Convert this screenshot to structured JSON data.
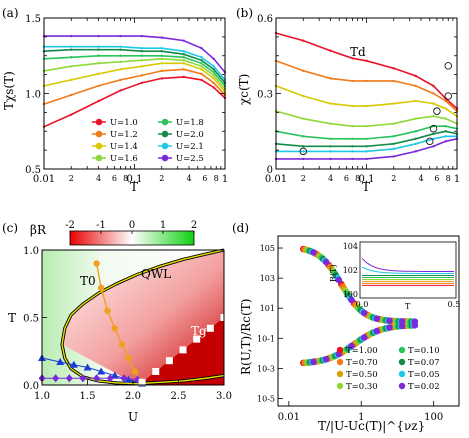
{
  "chart_data": [
    {
      "panel": "(a)",
      "type": "line",
      "xlabel": "T",
      "ylabel": "Tχs(T)",
      "xscale": "log",
      "xlim": [
        0.01,
        1
      ],
      "ylim": [
        0.5,
        1.5
      ],
      "xticks": [
        "0.01",
        "0.1",
        "1"
      ],
      "xminor": [
        "2",
        "4",
        "6",
        "8",
        "2",
        "4",
        "6",
        "8"
      ],
      "yticks": [
        "0.5",
        "1.0",
        "1.5"
      ],
      "legend_position": "lower-center",
      "series": [
        {
          "name": "U=1.0",
          "color": "#e8132a",
          "x": [
            0.01,
            0.02,
            0.04,
            0.07,
            0.12,
            0.2,
            0.35,
            0.55,
            0.75,
            1
          ],
          "y": [
            0.78,
            0.86,
            0.95,
            1.02,
            1.07,
            1.1,
            1.11,
            1.09,
            1.04,
            0.97
          ]
        },
        {
          "name": "U=1.2",
          "color": "#f07a1a",
          "x": [
            0.01,
            0.02,
            0.04,
            0.07,
            0.12,
            0.2,
            0.35,
            0.55,
            0.75,
            1
          ],
          "y": [
            0.93,
            0.99,
            1.05,
            1.09,
            1.12,
            1.15,
            1.16,
            1.13,
            1.07,
            0.99
          ]
        },
        {
          "name": "U=1.4",
          "color": "#d8c800",
          "x": [
            0.01,
            0.02,
            0.04,
            0.07,
            0.12,
            0.2,
            0.35,
            0.55,
            0.75,
            1
          ],
          "y": [
            1.05,
            1.09,
            1.13,
            1.16,
            1.18,
            1.2,
            1.2,
            1.16,
            1.1,
            1.01
          ]
        },
        {
          "name": "U=1.6",
          "color": "#8fd83a",
          "x": [
            0.01,
            0.02,
            0.04,
            0.07,
            0.12,
            0.2,
            0.35,
            0.55,
            0.75,
            1
          ],
          "y": [
            1.15,
            1.18,
            1.2,
            1.21,
            1.22,
            1.23,
            1.22,
            1.18,
            1.12,
            1.03
          ]
        },
        {
          "name": "U=1.8",
          "color": "#2ac35a",
          "x": [
            0.01,
            0.02,
            0.04,
            0.07,
            0.12,
            0.2,
            0.35,
            0.55,
            0.75,
            1
          ],
          "y": [
            1.23,
            1.24,
            1.25,
            1.25,
            1.25,
            1.25,
            1.24,
            1.2,
            1.14,
            1.05
          ]
        },
        {
          "name": "U=2.0",
          "color": "#138a4a",
          "x": [
            0.01,
            0.02,
            0.04,
            0.07,
            0.12,
            0.2,
            0.35,
            0.55,
            0.75,
            1
          ],
          "y": [
            1.28,
            1.29,
            1.29,
            1.29,
            1.28,
            1.28,
            1.26,
            1.22,
            1.16,
            1.07
          ]
        },
        {
          "name": "U=2.1",
          "color": "#20c8e6",
          "x": [
            0.01,
            0.02,
            0.04,
            0.07,
            0.12,
            0.2,
            0.35,
            0.55,
            0.75,
            1
          ],
          "y": [
            1.31,
            1.31,
            1.31,
            1.31,
            1.3,
            1.3,
            1.28,
            1.24,
            1.18,
            1.09
          ]
        },
        {
          "name": "U=2.5",
          "color": "#7a2ad8",
          "x": [
            0.01,
            0.02,
            0.04,
            0.07,
            0.12,
            0.2,
            0.35,
            0.55,
            0.75,
            1
          ],
          "y": [
            1.38,
            1.38,
            1.38,
            1.38,
            1.38,
            1.37,
            1.35,
            1.3,
            1.23,
            1.14
          ]
        }
      ]
    },
    {
      "panel": "(b)",
      "type": "line",
      "xlabel": "T",
      "ylabel": "χc(T)",
      "xscale": "log",
      "xlim": [
        0.01,
        1
      ],
      "ylim": [
        0,
        0.6
      ],
      "xticks": [
        "0.01",
        "0.1",
        "1"
      ],
      "xminor": [
        "2",
        "4",
        "6",
        "8",
        "2",
        "4",
        "6",
        "8"
      ],
      "yticks": [
        "0",
        "0.3",
        "0.6"
      ],
      "annotation": "Td",
      "series": [
        {
          "name": "U=1.0",
          "color": "#e8132a",
          "x": [
            0.01,
            0.02,
            0.04,
            0.07,
            0.1,
            0.2,
            0.35,
            0.55,
            0.75,
            1
          ],
          "y": [
            0.54,
            0.51,
            0.47,
            0.44,
            0.43,
            0.4,
            0.37,
            0.33,
            0.28,
            0.24
          ]
        },
        {
          "name": "U=1.2",
          "color": "#f07a1a",
          "x": [
            0.01,
            0.02,
            0.04,
            0.07,
            0.1,
            0.2,
            0.35,
            0.55,
            0.75,
            1
          ],
          "y": [
            0.43,
            0.39,
            0.36,
            0.35,
            0.35,
            0.35,
            0.33,
            0.3,
            0.27,
            0.23
          ]
        },
        {
          "name": "U=1.4",
          "color": "#d8c800",
          "x": [
            0.01,
            0.02,
            0.04,
            0.07,
            0.1,
            0.2,
            0.35,
            0.55,
            0.75,
            1
          ],
          "y": [
            0.33,
            0.29,
            0.26,
            0.25,
            0.25,
            0.26,
            0.27,
            0.26,
            0.24,
            0.21
          ]
        },
        {
          "name": "U=1.6",
          "color": "#8fd83a",
          "x": [
            0.01,
            0.02,
            0.04,
            0.07,
            0.1,
            0.2,
            0.35,
            0.55,
            0.75,
            1
          ],
          "y": [
            0.23,
            0.2,
            0.18,
            0.17,
            0.17,
            0.18,
            0.2,
            0.21,
            0.2,
            0.18
          ]
        },
        {
          "name": "U=1.8",
          "color": "#2ac35a",
          "x": [
            0.01,
            0.02,
            0.04,
            0.07,
            0.1,
            0.2,
            0.35,
            0.55,
            0.75,
            1
          ],
          "y": [
            0.15,
            0.13,
            0.12,
            0.12,
            0.12,
            0.13,
            0.15,
            0.17,
            0.17,
            0.16
          ]
        },
        {
          "name": "U=2.0",
          "color": "#138a4a",
          "x": [
            0.01,
            0.02,
            0.04,
            0.07,
            0.1,
            0.2,
            0.35,
            0.55,
            0.75,
            1
          ],
          "y": [
            0.1,
            0.09,
            0.09,
            0.09,
            0.09,
            0.1,
            0.12,
            0.14,
            0.15,
            0.14
          ]
        },
        {
          "name": "U=2.1",
          "color": "#20c8e6",
          "x": [
            0.01,
            0.02,
            0.04,
            0.07,
            0.1,
            0.2,
            0.35,
            0.55,
            0.75,
            1
          ],
          "y": [
            0.07,
            0.07,
            0.07,
            0.07,
            0.07,
            0.08,
            0.1,
            0.12,
            0.13,
            0.13
          ]
        },
        {
          "name": "U=2.5",
          "color": "#7a2ad8",
          "x": [
            0.01,
            0.02,
            0.04,
            0.07,
            0.1,
            0.2,
            0.35,
            0.55,
            0.75,
            1
          ],
          "y": [
            0.04,
            0.04,
            0.04,
            0.04,
            0.04,
            0.05,
            0.07,
            0.09,
            0.11,
            0.12
          ]
        }
      ],
      "td_markers": [
        {
          "x": 0.8,
          "y": 0.41
        },
        {
          "x": 0.8,
          "y": 0.29
        },
        {
          "x": 0.6,
          "y": 0.23
        },
        {
          "x": 0.55,
          "y": 0.16
        },
        {
          "x": 0.5,
          "y": 0.11
        },
        {
          "x": 0.02,
          "y": 0.07
        }
      ]
    },
    {
      "panel": "(c)",
      "type": "heatmap",
      "xlabel": "U",
      "ylabel": "T",
      "xlim": [
        1.0,
        3.0
      ],
      "ylim": [
        0,
        1.0
      ],
      "xticks": [
        "1.0",
        "1.5",
        "2.0",
        "2.5",
        "3.0"
      ],
      "yticks": [
        "0.0",
        "0.5",
        "1.0"
      ],
      "colorbar_label": "βR",
      "colorbar_ticks": [
        "-2",
        "-1",
        "0",
        "1",
        "2"
      ],
      "colorbar_range": [
        -2,
        2
      ],
      "labels": [
        "T0",
        "QWL",
        "Tg"
      ],
      "qwl_curve": {
        "U": [
          1.22,
          1.25,
          1.32,
          1.45,
          1.62,
          1.82,
          2.05,
          2.3,
          2.55,
          2.8,
          3.0
        ],
        "T": [
          0.3,
          0.2,
          0.12,
          0.06,
          0.03,
          0.015,
          0.01,
          0.02,
          0.03,
          0.05,
          0.07
        ],
        "T_upper": [
          0.3,
          0.42,
          0.52,
          0.6,
          0.68,
          0.75,
          0.82,
          0.88,
          0.93,
          0.97,
          1.0
        ]
      },
      "t0_points": {
        "U": [
          1.6,
          1.65,
          1.72,
          1.8,
          1.88,
          1.95,
          2.02,
          2.08
        ],
        "T": [
          0.9,
          0.72,
          0.55,
          0.42,
          0.3,
          0.2,
          0.1,
          0.03
        ]
      },
      "triangle_points": {
        "U": [
          1.0,
          1.2,
          1.35,
          1.5,
          1.65,
          1.8,
          1.95,
          2.1
        ],
        "T": [
          0.2,
          0.17,
          0.15,
          0.13,
          0.1,
          0.07,
          0.04,
          0.01
        ]
      },
      "diamond_points": {
        "U": [
          1.0,
          1.15,
          1.3,
          1.45,
          1.6,
          1.75,
          1.9,
          2.05
        ],
        "T": [
          0.05,
          0.05,
          0.05,
          0.05,
          0.05,
          0.05,
          0.05,
          0.04
        ]
      },
      "tg_steps": {
        "U": [
          2.1,
          2.25,
          2.4,
          2.55,
          2.7,
          2.85,
          3.0
        ],
        "T": [
          0.02,
          0.1,
          0.18,
          0.26,
          0.34,
          0.42,
          0.5
        ]
      }
    },
    {
      "panel": "(d)",
      "type": "scatter",
      "xlabel": "T/|U-Uc(T)|^{νz}",
      "ylabel": "R(U,T)/Rc(T)",
      "xscale": "log",
      "yscale": "log",
      "xticks": [
        "0.01",
        "1",
        "100"
      ],
      "yticks": [
        "10-5",
        "10-3",
        "10-1",
        "101",
        "103",
        "105"
      ],
      "series": [
        {
          "name": "T=1.00",
          "color": "#e8132a"
        },
        {
          "name": "T=0.70",
          "color": "#f07a1a"
        },
        {
          "name": "T=0.50",
          "color": "#d8a000"
        },
        {
          "name": "T=0.30",
          "color": "#8fd83a"
        },
        {
          "name": "T=0.10",
          "color": "#2ac35a"
        },
        {
          "name": "T=0.07",
          "color": "#138a4a"
        },
        {
          "name": "T=0.05",
          "color": "#20c8e6"
        },
        {
          "name": "T=0.02",
          "color": "#7a2ad8"
        }
      ],
      "inset": {
        "xlabel": "T",
        "ylabel": "R(T)",
        "xticks": [
          "0.0",
          "0.5"
        ],
        "yticks": [
          "100",
          "102",
          "104"
        ]
      }
    }
  ]
}
